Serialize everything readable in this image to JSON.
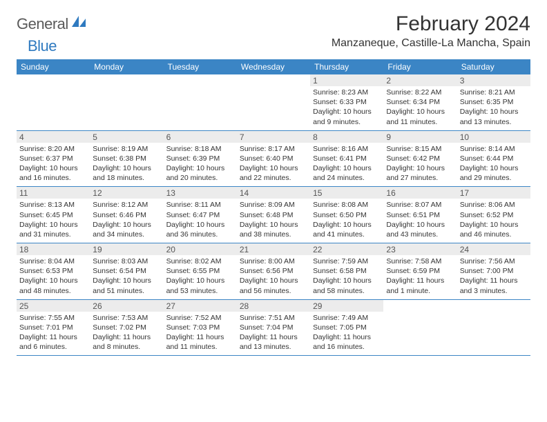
{
  "logo": {
    "word1": "General",
    "word2": "Blue"
  },
  "title": "February 2024",
  "location": "Manzaneque, Castille-La Mancha, Spain",
  "colors": {
    "header_bg": "#3b85c5",
    "header_text": "#ffffff",
    "daynum_bg": "#ececec",
    "week_border": "#3b85c5",
    "logo_gray": "#5a5a5a",
    "logo_blue": "#2f7ac0",
    "body_text": "#333333"
  },
  "dow": [
    "Sunday",
    "Monday",
    "Tuesday",
    "Wednesday",
    "Thursday",
    "Friday",
    "Saturday"
  ],
  "weeks": [
    [
      null,
      null,
      null,
      null,
      {
        "n": "1",
        "sr": "8:23 AM",
        "ss": "6:33 PM",
        "dl": "10 hours and 9 minutes."
      },
      {
        "n": "2",
        "sr": "8:22 AM",
        "ss": "6:34 PM",
        "dl": "10 hours and 11 minutes."
      },
      {
        "n": "3",
        "sr": "8:21 AM",
        "ss": "6:35 PM",
        "dl": "10 hours and 13 minutes."
      }
    ],
    [
      {
        "n": "4",
        "sr": "8:20 AM",
        "ss": "6:37 PM",
        "dl": "10 hours and 16 minutes."
      },
      {
        "n": "5",
        "sr": "8:19 AM",
        "ss": "6:38 PM",
        "dl": "10 hours and 18 minutes."
      },
      {
        "n": "6",
        "sr": "8:18 AM",
        "ss": "6:39 PM",
        "dl": "10 hours and 20 minutes."
      },
      {
        "n": "7",
        "sr": "8:17 AM",
        "ss": "6:40 PM",
        "dl": "10 hours and 22 minutes."
      },
      {
        "n": "8",
        "sr": "8:16 AM",
        "ss": "6:41 PM",
        "dl": "10 hours and 24 minutes."
      },
      {
        "n": "9",
        "sr": "8:15 AM",
        "ss": "6:42 PM",
        "dl": "10 hours and 27 minutes."
      },
      {
        "n": "10",
        "sr": "8:14 AM",
        "ss": "6:44 PM",
        "dl": "10 hours and 29 minutes."
      }
    ],
    [
      {
        "n": "11",
        "sr": "8:13 AM",
        "ss": "6:45 PM",
        "dl": "10 hours and 31 minutes."
      },
      {
        "n": "12",
        "sr": "8:12 AM",
        "ss": "6:46 PM",
        "dl": "10 hours and 34 minutes."
      },
      {
        "n": "13",
        "sr": "8:11 AM",
        "ss": "6:47 PM",
        "dl": "10 hours and 36 minutes."
      },
      {
        "n": "14",
        "sr": "8:09 AM",
        "ss": "6:48 PM",
        "dl": "10 hours and 38 minutes."
      },
      {
        "n": "15",
        "sr": "8:08 AM",
        "ss": "6:50 PM",
        "dl": "10 hours and 41 minutes."
      },
      {
        "n": "16",
        "sr": "8:07 AM",
        "ss": "6:51 PM",
        "dl": "10 hours and 43 minutes."
      },
      {
        "n": "17",
        "sr": "8:06 AM",
        "ss": "6:52 PM",
        "dl": "10 hours and 46 minutes."
      }
    ],
    [
      {
        "n": "18",
        "sr": "8:04 AM",
        "ss": "6:53 PM",
        "dl": "10 hours and 48 minutes."
      },
      {
        "n": "19",
        "sr": "8:03 AM",
        "ss": "6:54 PM",
        "dl": "10 hours and 51 minutes."
      },
      {
        "n": "20",
        "sr": "8:02 AM",
        "ss": "6:55 PM",
        "dl": "10 hours and 53 minutes."
      },
      {
        "n": "21",
        "sr": "8:00 AM",
        "ss": "6:56 PM",
        "dl": "10 hours and 56 minutes."
      },
      {
        "n": "22",
        "sr": "7:59 AM",
        "ss": "6:58 PM",
        "dl": "10 hours and 58 minutes."
      },
      {
        "n": "23",
        "sr": "7:58 AM",
        "ss": "6:59 PM",
        "dl": "11 hours and 1 minute."
      },
      {
        "n": "24",
        "sr": "7:56 AM",
        "ss": "7:00 PM",
        "dl": "11 hours and 3 minutes."
      }
    ],
    [
      {
        "n": "25",
        "sr": "7:55 AM",
        "ss": "7:01 PM",
        "dl": "11 hours and 6 minutes."
      },
      {
        "n": "26",
        "sr": "7:53 AM",
        "ss": "7:02 PM",
        "dl": "11 hours and 8 minutes."
      },
      {
        "n": "27",
        "sr": "7:52 AM",
        "ss": "7:03 PM",
        "dl": "11 hours and 11 minutes."
      },
      {
        "n": "28",
        "sr": "7:51 AM",
        "ss": "7:04 PM",
        "dl": "11 hours and 13 minutes."
      },
      {
        "n": "29",
        "sr": "7:49 AM",
        "ss": "7:05 PM",
        "dl": "11 hours and 16 minutes."
      },
      null,
      null
    ]
  ],
  "labels": {
    "sunrise": "Sunrise: ",
    "sunset": "Sunset: ",
    "daylight": "Daylight: "
  }
}
